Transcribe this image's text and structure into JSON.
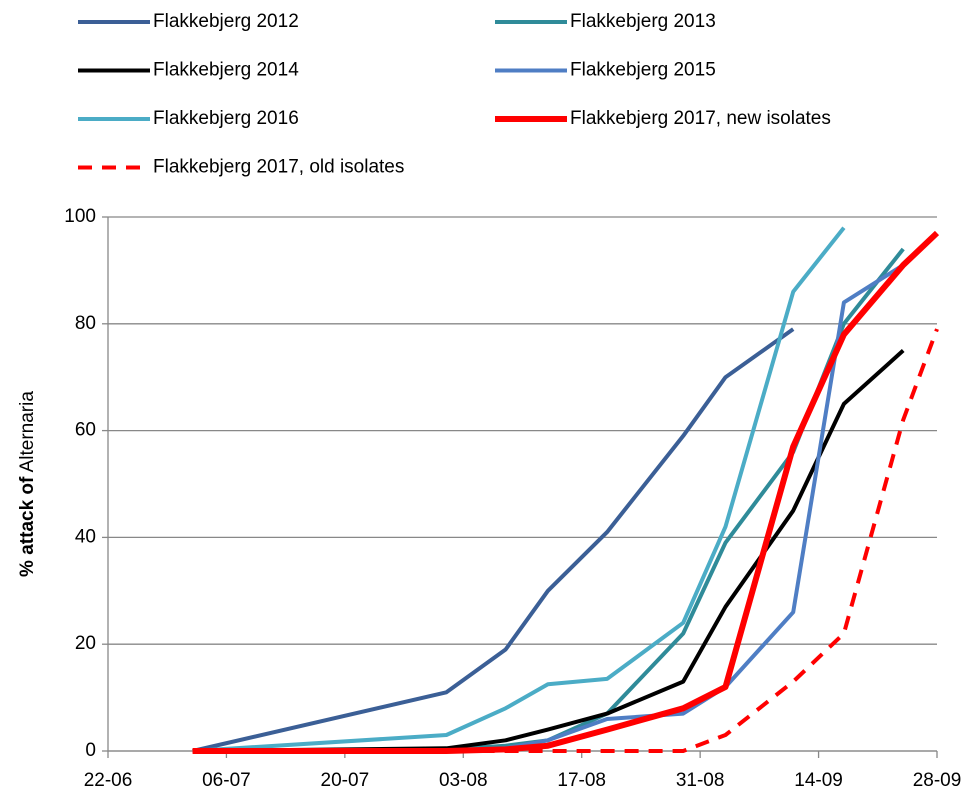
{
  "chart_data": {
    "type": "line",
    "ylabel": [
      "% attack of",
      "Alternaria"
    ],
    "x": [
      "02-07",
      "01-08",
      "08-08",
      "13-08",
      "20-08",
      "29-08",
      "03-09",
      "11-09",
      "17-09",
      "24-09",
      "28-09"
    ],
    "series": [
      {
        "name": "Flakkebjerg 2012",
        "color": "#3b5f96",
        "width": 4,
        "dashed": false,
        "values": [
          0,
          11,
          19,
          30,
          41,
          59,
          70,
          79,
          null,
          null,
          null
        ]
      },
      {
        "name": "Flakkebjerg 2013",
        "color": "#2f8b99",
        "width": 4,
        "dashed": false,
        "values": [
          0,
          0.3,
          1,
          2,
          7,
          22,
          39,
          56,
          80,
          94,
          null
        ]
      },
      {
        "name": "Flakkebjerg 2014",
        "color": "#000000",
        "width": 4,
        "dashed": false,
        "values": [
          0,
          0.5,
          2,
          4,
          7,
          13,
          27,
          45,
          65,
          75,
          null
        ]
      },
      {
        "name": "Flakkebjerg 2015",
        "color": "#4f7ec4",
        "width": 4,
        "dashed": false,
        "values": [
          0,
          0,
          0.5,
          2,
          6,
          7,
          12,
          26,
          84,
          91,
          null
        ]
      },
      {
        "name": "Flakkebjerg 2016",
        "color": "#4bacc6",
        "width": 4,
        "dashed": false,
        "values": [
          0,
          3,
          8,
          12.5,
          13.5,
          24,
          42,
          86,
          98,
          null,
          null
        ]
      },
      {
        "name": "Flakkebjerg 2017, new isolates",
        "color": "#ff0000",
        "width": 6,
        "dashed": false,
        "values": [
          0,
          0,
          0.3,
          1,
          4,
          8,
          12,
          57,
          78,
          91,
          97
        ]
      },
      {
        "name": "Flakkebjerg 2017, old  isolates",
        "color": "#ff0000",
        "width": 4,
        "dashed": true,
        "values": [
          0,
          0,
          0,
          0,
          0,
          0,
          3,
          13,
          22,
          62,
          79
        ]
      }
    ],
    "xlim": [
      "22-06",
      "28-09"
    ],
    "xticks": [
      "22-06",
      "06-07",
      "20-07",
      "03-08",
      "17-08",
      "31-08",
      "14-09",
      "28-09"
    ],
    "ylim": [
      0,
      100
    ],
    "yticks": [
      0,
      20,
      40,
      60,
      80,
      100
    ],
    "grid": true
  }
}
